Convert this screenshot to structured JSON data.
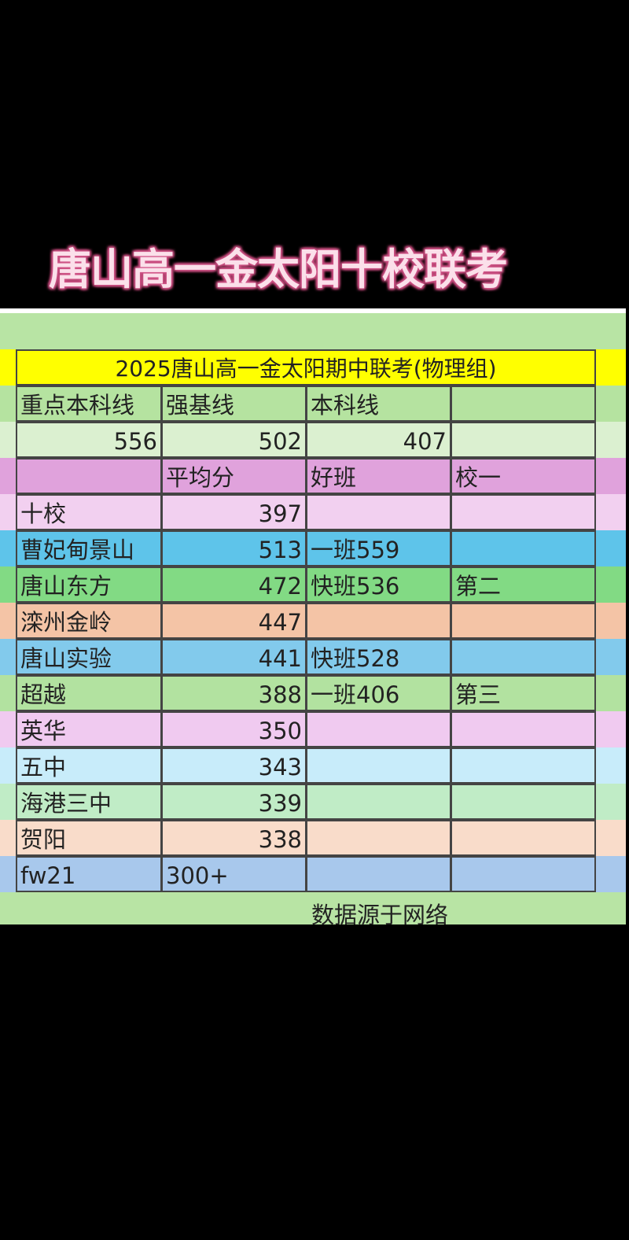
{
  "banner": "唐山高一金太阳十校联考",
  "table_title": "2025唐山高一金太阳期中联考(物理组)",
  "colors": {
    "title_bg": "#ffff00",
    "sheet_bg": "#b8e4a4",
    "banner_text": "#fbe0ea",
    "banner_outline": "#d4588c"
  },
  "rows": [
    {
      "cells": [
        "重点本科线",
        "强基线",
        "本科线",
        ""
      ],
      "bg": "#b5e3a0",
      "num": [
        false,
        false,
        false,
        false
      ]
    },
    {
      "cells": [
        "556",
        "502",
        "407",
        ""
      ],
      "bg": "#dbf0d0",
      "num": [
        true,
        true,
        true,
        false
      ]
    },
    {
      "cells": [
        "",
        "平均分",
        "好班",
        "校一"
      ],
      "bg": "#e0a2dc",
      "num": [
        false,
        false,
        false,
        false
      ]
    },
    {
      "cells": [
        "十校",
        "397",
        "",
        ""
      ],
      "bg": "#f2d0f0",
      "num": [
        false,
        true,
        false,
        false
      ]
    },
    {
      "cells": [
        "曹妃甸景山",
        "513",
        "一班559",
        ""
      ],
      "bg": "#5ec4ea",
      "num": [
        false,
        true,
        false,
        false
      ]
    },
    {
      "cells": [
        "唐山东方",
        "472",
        "快班536",
        "第二"
      ],
      "bg": "#82da84",
      "num": [
        false,
        true,
        false,
        false
      ]
    },
    {
      "cells": [
        "滦州金岭",
        "447",
        "",
        ""
      ],
      "bg": "#f4c4a6",
      "num": [
        false,
        true,
        false,
        false
      ]
    },
    {
      "cells": [
        "唐山实验",
        "441",
        "快班528",
        ""
      ],
      "bg": "#82caec",
      "num": [
        false,
        true,
        false,
        false
      ]
    },
    {
      "cells": [
        "超越",
        "388",
        "一班406",
        "第三"
      ],
      "bg": "#b2e2a0",
      "num": [
        false,
        true,
        false,
        false
      ]
    },
    {
      "cells": [
        "英华",
        "350",
        "",
        ""
      ],
      "bg": "#f0caf0",
      "num": [
        false,
        true,
        false,
        false
      ]
    },
    {
      "cells": [
        "五中",
        "343",
        "",
        ""
      ],
      "bg": "#c8ecfa",
      "num": [
        false,
        true,
        false,
        false
      ]
    },
    {
      "cells": [
        "海港三中",
        "339",
        "",
        ""
      ],
      "bg": "#c0ecc6",
      "num": [
        false,
        true,
        false,
        false
      ]
    },
    {
      "cells": [
        "贺阳",
        "338",
        "",
        ""
      ],
      "bg": "#f9dcca",
      "num": [
        false,
        true,
        false,
        false
      ]
    },
    {
      "cells": [
        "fw21",
        "300+",
        "",
        ""
      ],
      "bg": "#a8c8ec",
      "num": [
        false,
        false,
        false,
        false
      ]
    }
  ],
  "caption": "数据源于网络"
}
